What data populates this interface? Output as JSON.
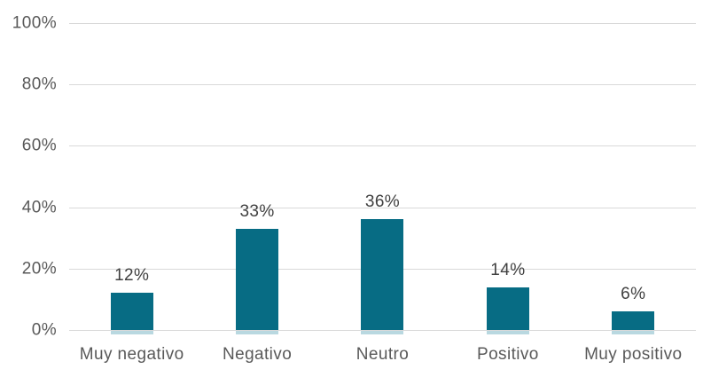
{
  "chart_data": {
    "type": "bar",
    "title": "",
    "xlabel": "",
    "ylabel": "",
    "categories": [
      "Muy negativo",
      "Negativo",
      "Neutro",
      "Positivo",
      "Muy positivo"
    ],
    "values": [
      12,
      33,
      36,
      14,
      6
    ],
    "data_labels": [
      "12%",
      "33%",
      "36%",
      "14%",
      "6%"
    ],
    "ylim": [
      0,
      100
    ],
    "ytick_values": [
      0,
      20,
      40,
      60,
      80,
      100
    ],
    "ytick_labels": [
      "0%",
      "20%",
      "40%",
      "60%",
      "80%",
      "100%"
    ],
    "grid": true,
    "legend_position": "none",
    "colors": {
      "bar": "#076c84",
      "bar_base_glow": "#b9d8e0",
      "gridline": "#d9d9d9",
      "axis_text": "#595959",
      "data_label_text": "#404040",
      "background": "#ffffff"
    }
  }
}
